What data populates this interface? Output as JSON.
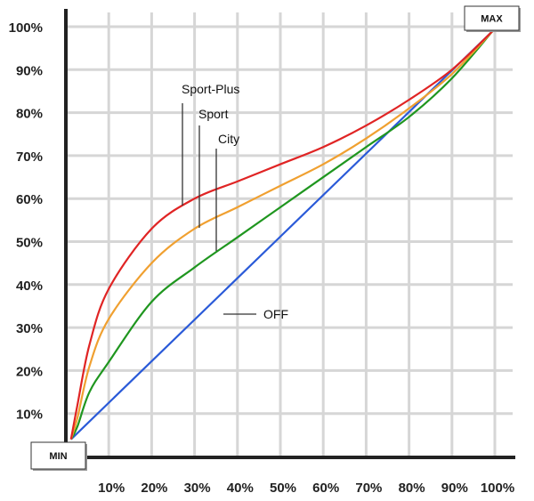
{
  "chart_data": {
    "type": "line",
    "title": "",
    "xlabel": "",
    "ylabel": "",
    "xlim": [
      0,
      100
    ],
    "ylim": [
      0,
      100
    ],
    "grid": true,
    "x_ticks": [
      "10%",
      "20%",
      "30%",
      "40%",
      "50%",
      "60%",
      "70%",
      "80%",
      "90%",
      "100%"
    ],
    "y_ticks": [
      "10%",
      "20%",
      "30%",
      "40%",
      "50%",
      "60%",
      "70%",
      "80%",
      "90%",
      "100%"
    ],
    "corner_labels": {
      "min": "MIN",
      "max": "MAX"
    },
    "series": [
      {
        "name": "Sport-Plus",
        "color": "#e02424",
        "x": [
          1.2,
          2.7,
          5.5,
          10,
          20,
          30,
          40,
          50,
          60,
          70,
          80,
          90,
          99.5
        ],
        "y": [
          4,
          12,
          26,
          39,
          53,
          60,
          64,
          68,
          72,
          77,
          83,
          90,
          99
        ]
      },
      {
        "name": "Sport",
        "color": "#f0a030",
        "x": [
          1.2,
          2.7,
          5.5,
          10,
          20,
          30,
          40,
          50,
          60,
          70,
          80,
          90,
          99.5
        ],
        "y": [
          4,
          9,
          21,
          32,
          45,
          53,
          58,
          63,
          68,
          74,
          81,
          89,
          99
        ]
      },
      {
        "name": "City",
        "color": "#1f961f",
        "x": [
          1.2,
          2.7,
          5.5,
          10,
          20,
          30,
          40,
          50,
          60,
          70,
          80,
          90,
          99.5
        ],
        "y": [
          4,
          7,
          15,
          22,
          36,
          44,
          51,
          58,
          65,
          72,
          79,
          88,
          99
        ]
      },
      {
        "name": "OFF",
        "color": "#2a5ad8",
        "x": [
          1.2,
          99.5
        ],
        "y": [
          4,
          99
        ]
      }
    ]
  }
}
